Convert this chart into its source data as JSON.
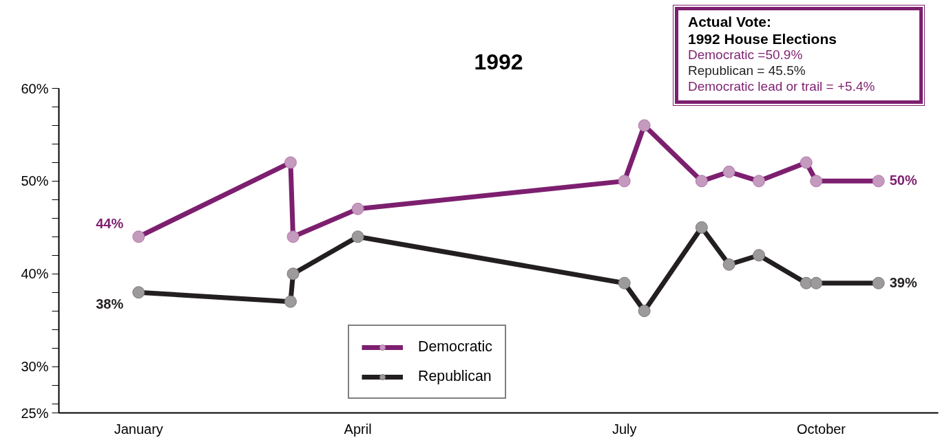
{
  "chart_data": {
    "type": "line",
    "title": "1992",
    "x": [
      "1992-01-15",
      "1992-03-16",
      "1992-03-17",
      "1992-04-12",
      "1992-07-28",
      "1992-08-05",
      "1992-08-28",
      "1992-09-08",
      "1992-09-20",
      "1992-10-09",
      "1992-10-13",
      "1992-11-07"
    ],
    "series": [
      {
        "name": "Democratic",
        "color": "#7d1f6f",
        "values": [
          44,
          52,
          44,
          47,
          50,
          56,
          50,
          51,
          50,
          52,
          50,
          50
        ],
        "value_labels": [
          "44%",
          null,
          null,
          null,
          null,
          null,
          null,
          null,
          null,
          null,
          null,
          "50%"
        ]
      },
      {
        "name": "Republican",
        "color": "#231f20",
        "values": [
          38,
          37,
          40,
          44,
          39,
          36,
          45,
          41,
          42,
          39,
          39,
          39
        ],
        "value_labels": [
          "38%",
          null,
          null,
          null,
          null,
          null,
          null,
          null,
          null,
          null,
          null,
          "39%"
        ]
      }
    ],
    "xlim": [
      "1991-12-14",
      "1992-12-01"
    ],
    "xticks": [
      {
        "value": "1992-01-15",
        "label": "January"
      },
      {
        "value": "1992-04-12",
        "label": "April"
      },
      {
        "value": "1992-07-28",
        "label": "July"
      },
      {
        "value": "1992-10-15",
        "label": "October"
      }
    ],
    "ylim": [
      25,
      60
    ],
    "yticks": [
      {
        "value": 25,
        "label": "25%"
      },
      {
        "value": 26,
        "label": null
      },
      {
        "value": 28,
        "label": null
      },
      {
        "value": 30,
        "label": "30%"
      },
      {
        "value": 32,
        "label": null
      },
      {
        "value": 34,
        "label": null
      },
      {
        "value": 36,
        "label": null
      },
      {
        "value": 38,
        "label": null
      },
      {
        "value": 40,
        "label": "40%"
      },
      {
        "value": 42,
        "label": null
      },
      {
        "value": 44,
        "label": null
      },
      {
        "value": 46,
        "label": null
      },
      {
        "value": 48,
        "label": null
      },
      {
        "value": 50,
        "label": "50%"
      },
      {
        "value": 52,
        "label": null
      },
      {
        "value": 54,
        "label": null
      },
      {
        "value": 56,
        "label": null
      },
      {
        "value": 58,
        "label": null
      },
      {
        "value": 60,
        "label": "60%"
      }
    ],
    "annotations": [
      "Actual Vote:",
      "1992 House Elections",
      "Democratic =50.9%",
      "Republican = 45.5%",
      "Democratic lead or trail = +5.4%"
    ],
    "grid": false,
    "legend": "bottom",
    "marker": "circle",
    "line_style": "solid"
  }
}
